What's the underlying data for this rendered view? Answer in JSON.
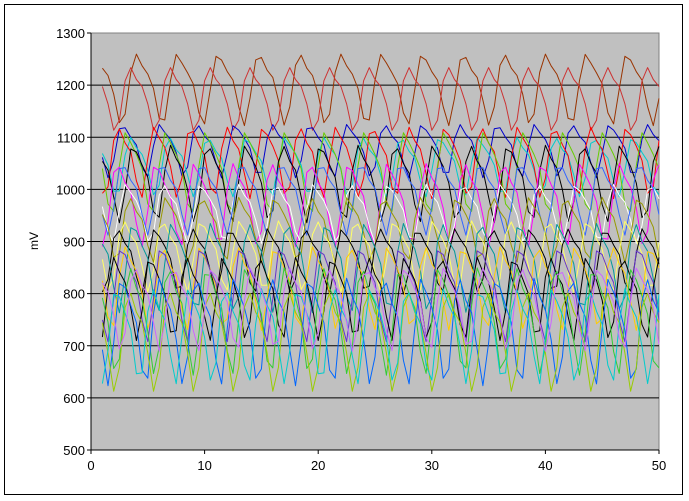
{
  "chart_data": {
    "type": "line",
    "title": "",
    "xlabel": "",
    "ylabel": "mV",
    "xlim": [
      0,
      50
    ],
    "ylim": [
      500,
      1300
    ],
    "x_ticks": [
      0,
      10,
      20,
      30,
      40,
      50
    ],
    "y_ticks": [
      500,
      600,
      700,
      800,
      900,
      1000,
      1100,
      1200,
      1300
    ],
    "grid": "horizontal",
    "legend": "none",
    "plot_background": "#c0c0c0",
    "gridline_color": "#000000",
    "x_start": 1,
    "x_end": 50,
    "x_step": 0.5,
    "series": [
      {
        "color": "#993300",
        "mean": 1200,
        "amp": 60,
        "period": 3.6,
        "phase": 0.3
      },
      {
        "color": "#cc3333",
        "mean": 1180,
        "amp": 55,
        "period": 3.5,
        "phase": 1.1
      },
      {
        "color": "#0000cc",
        "mean": 1080,
        "amp": 45,
        "period": 3.3,
        "phase": 2.0
      },
      {
        "color": "#00cccc",
        "mean": 1050,
        "amp": 50,
        "period": 3.4,
        "phase": 0.8
      },
      {
        "color": "#ff0000",
        "mean": 1060,
        "amp": 60,
        "period": 3.2,
        "phase": 2.6
      },
      {
        "color": "#66cc00",
        "mean": 1040,
        "amp": 70,
        "period": 3.5,
        "phase": 1.7
      },
      {
        "color": "#000000",
        "mean": 1020,
        "amp": 65,
        "period": 3.3,
        "phase": 0.2
      },
      {
        "color": "#ff00ff",
        "mean": 980,
        "amp": 70,
        "period": 3.4,
        "phase": 3.0
      },
      {
        "color": "#ffffff",
        "mean": 960,
        "amp": 50,
        "period": 3.3,
        "phase": 1.4
      },
      {
        "color": "#3366ff",
        "mean": 990,
        "amp": 60,
        "period": 3.5,
        "phase": 2.3
      },
      {
        "color": "#999900",
        "mean": 930,
        "amp": 55,
        "period": 3.2,
        "phase": 0.6
      },
      {
        "color": "#ffff66",
        "mean": 880,
        "amp": 60,
        "period": 3.4,
        "phase": 1.9
      },
      {
        "color": "#000000",
        "mean": 870,
        "amp": 55,
        "period": 3.3,
        "phase": 2.8
      },
      {
        "color": "#009999",
        "mean": 860,
        "amp": 75,
        "period": 3.4,
        "phase": 0.4
      },
      {
        "color": "#ffcc00",
        "mean": 820,
        "amp": 70,
        "period": 3.3,
        "phase": 1.5
      },
      {
        "color": "#6633cc",
        "mean": 810,
        "amp": 80,
        "period": 3.5,
        "phase": 2.4
      },
      {
        "color": "#000000",
        "mean": 800,
        "amp": 70,
        "period": 3.2,
        "phase": 3.3
      },
      {
        "color": "#33cc33",
        "mean": 760,
        "amp": 90,
        "period": 3.4,
        "phase": 0.9
      },
      {
        "color": "#0066ff",
        "mean": 740,
        "amp": 90,
        "period": 3.3,
        "phase": 2.1
      },
      {
        "color": "#99cc00",
        "mean": 720,
        "amp": 85,
        "period": 3.5,
        "phase": 1.2
      },
      {
        "color": "#00cccc",
        "mean": 730,
        "amp": 80,
        "period": 3.2,
        "phase": 2.9
      },
      {
        "color": "#cc66ff",
        "mean": 780,
        "amp": 70,
        "period": 3.4,
        "phase": 0.1
      }
    ]
  }
}
